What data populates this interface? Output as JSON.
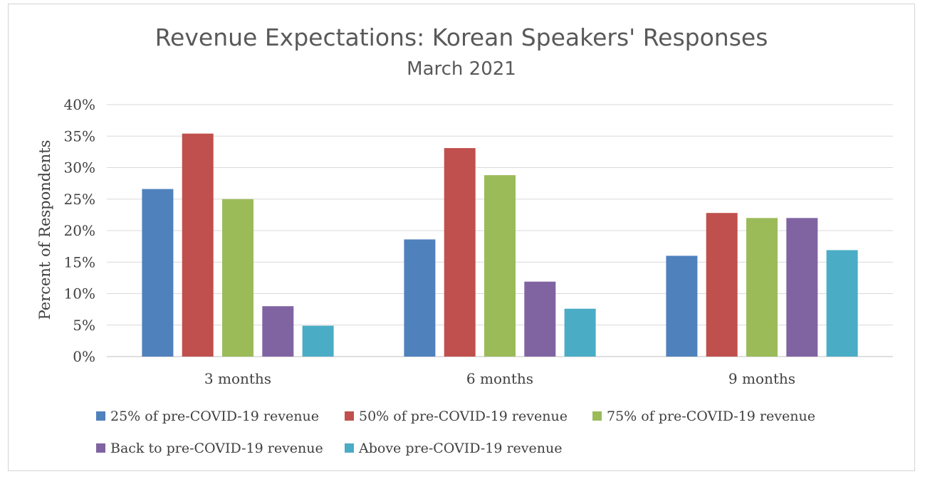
{
  "chart_data": {
    "type": "bar",
    "title": "Revenue Expectations: Korean Speakers' Responses",
    "subtitle": "March 2021",
    "xlabel": "",
    "ylabel": "Percent of Respondents",
    "ylim": [
      0,
      40
    ],
    "yticks": [
      "0%",
      "5%",
      "10%",
      "15%",
      "20%",
      "25%",
      "30%",
      "35%",
      "40%"
    ],
    "categories": [
      "3 months",
      "6 months",
      "9 months"
    ],
    "grid": true,
    "legend_position": "bottom",
    "series": [
      {
        "name": "25% of pre-COVID-19 revenue",
        "color": "#4f81bd",
        "values": [
          26.6,
          18.6,
          16.0
        ]
      },
      {
        "name": "50% of pre-COVID-19 revenue",
        "color": "#c0504d",
        "values": [
          35.4,
          33.1,
          22.8
        ]
      },
      {
        "name": "75% of pre-COVID-19 revenue",
        "color": "#9bbb59",
        "values": [
          25.0,
          28.8,
          22.0
        ]
      },
      {
        "name": "Back to pre-COVID-19 revenue",
        "color": "#8064a2",
        "values": [
          8.0,
          11.9,
          22.0
        ]
      },
      {
        "name": "Above pre-COVID-19 revenue",
        "color": "#4bacc6",
        "values": [
          4.9,
          7.6,
          16.9
        ]
      }
    ]
  }
}
